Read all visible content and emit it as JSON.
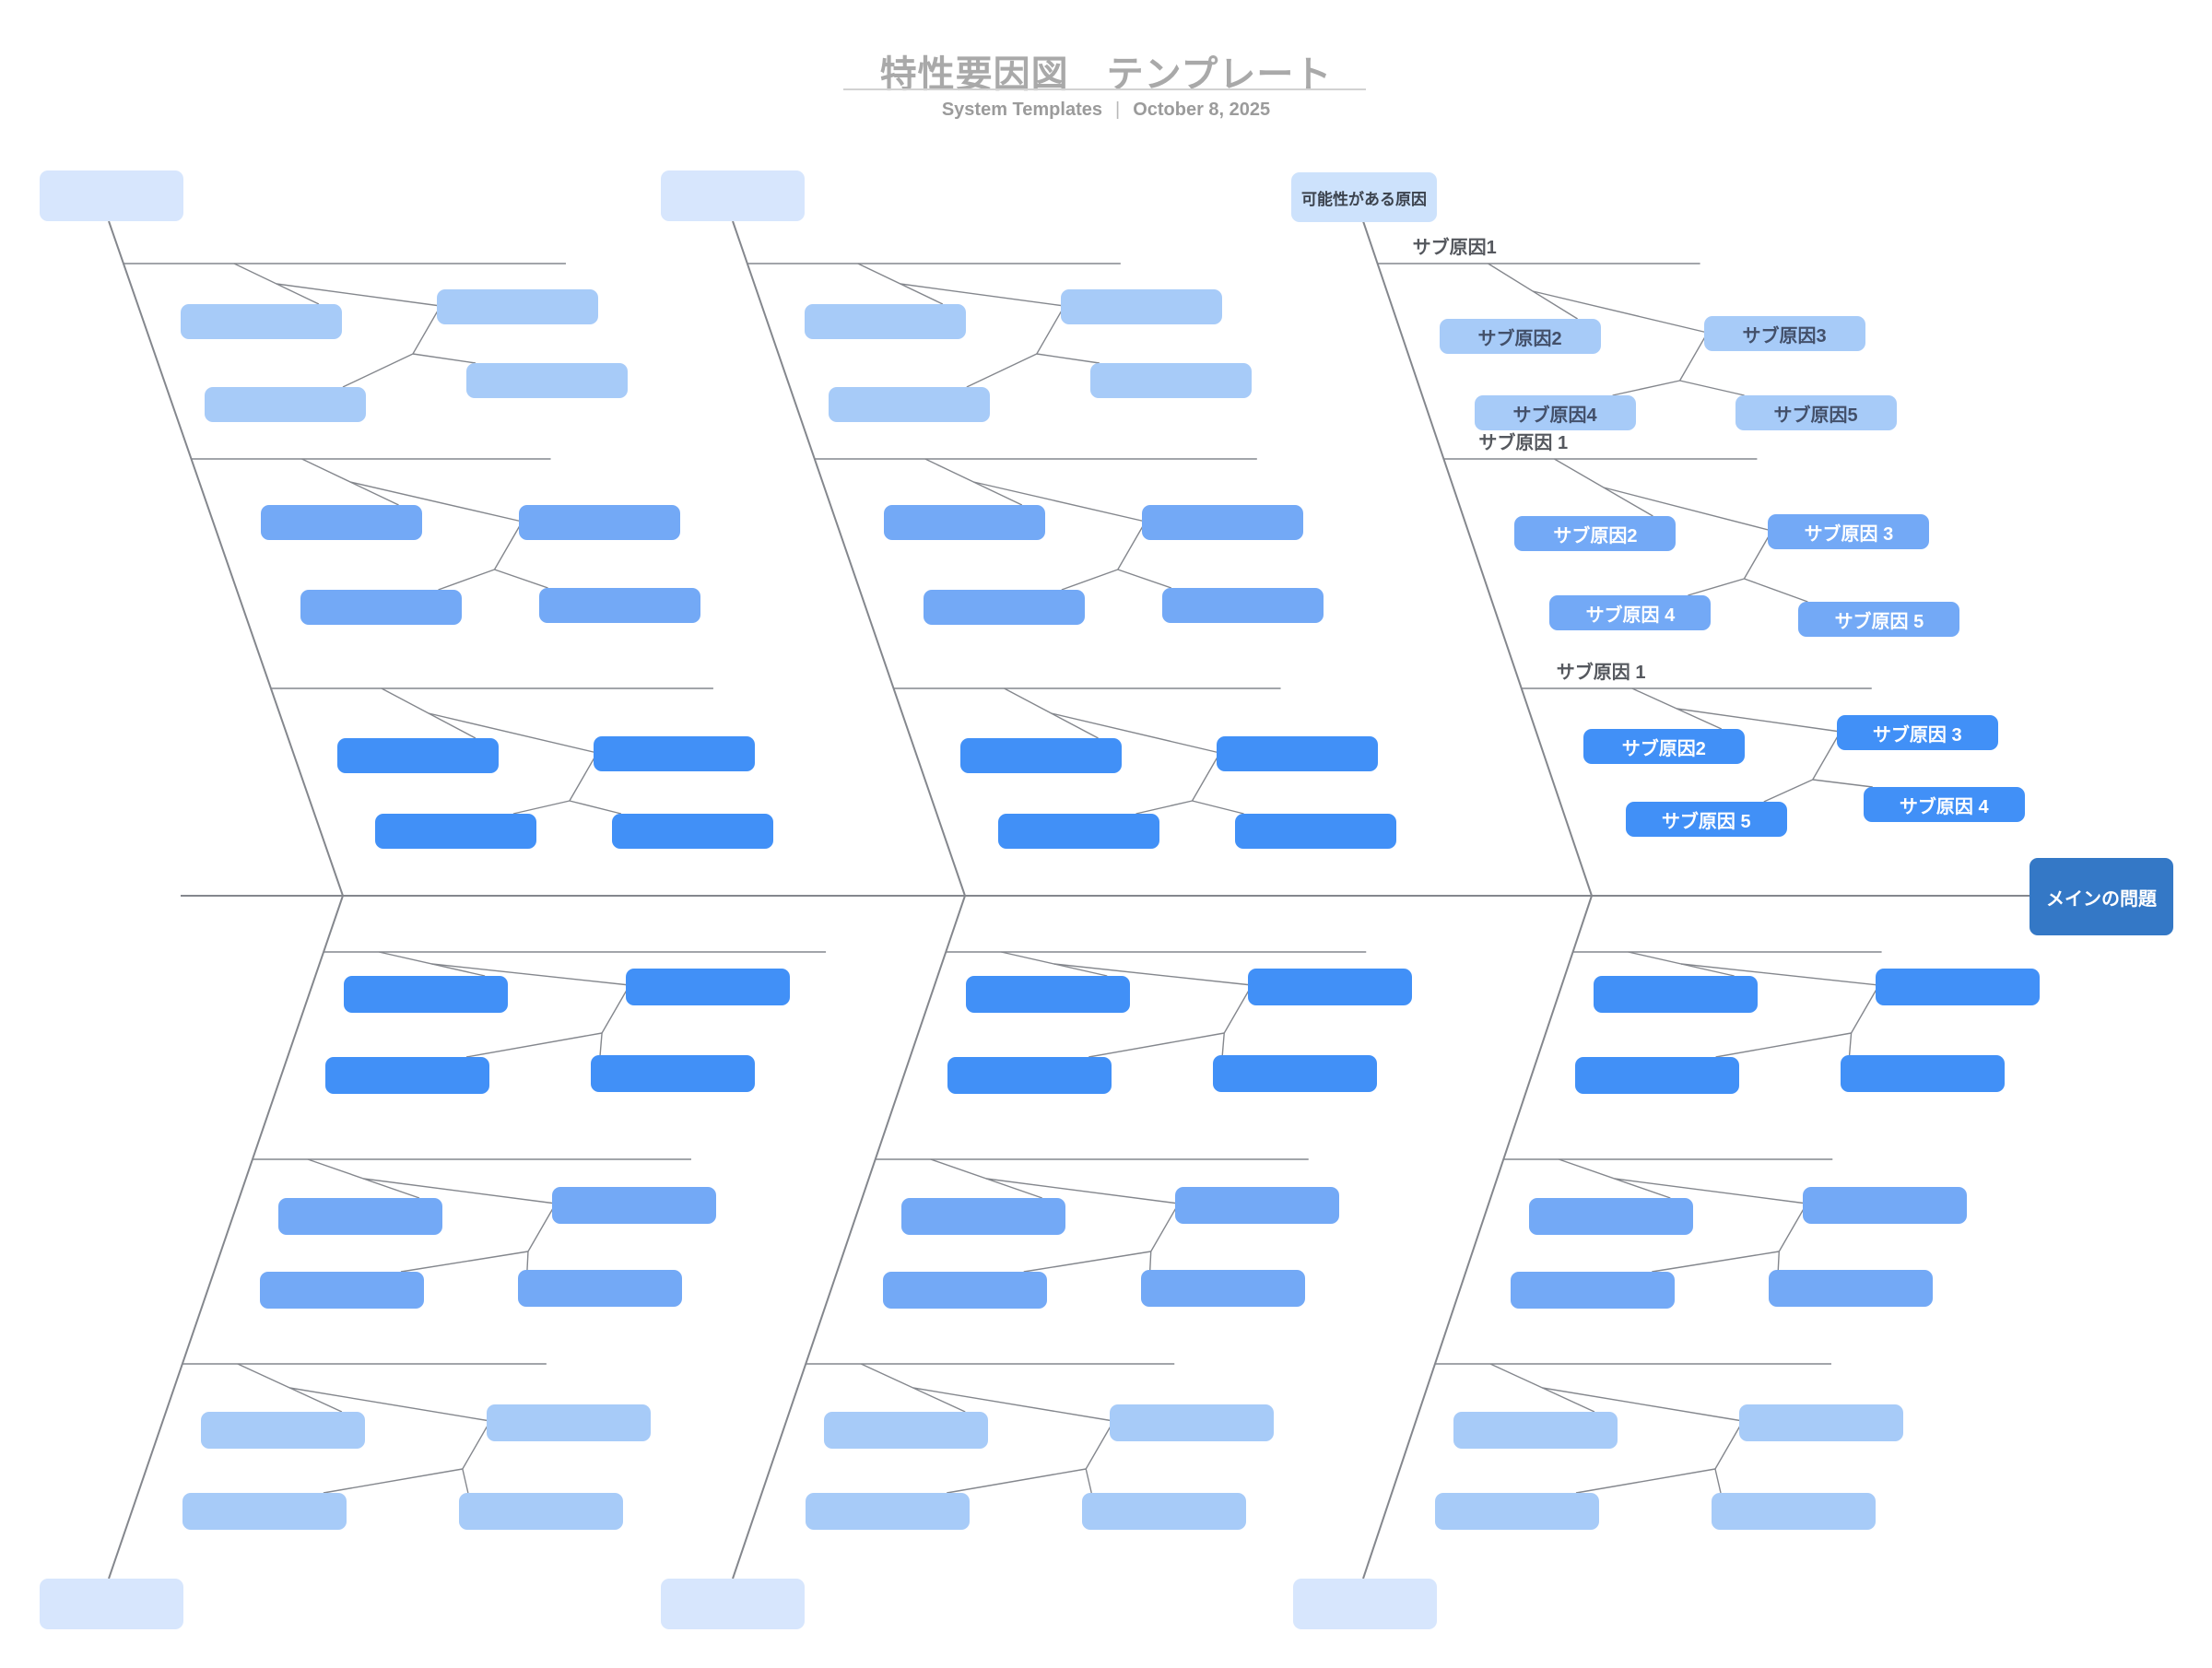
{
  "header": {
    "title": "特性要因図　テンプレート",
    "brand": "System Templates",
    "separator": "|",
    "date": "October 8, 2025"
  },
  "diagram": {
    "main_problem": "メインの問題",
    "possible_cause_label": "可能性がある原因",
    "labeled_branch": {
      "row_labels": [
        "サブ原因1",
        "サブ原因 1",
        "サブ原因 1"
      ],
      "rows": [
        [
          "サブ原因2",
          "サブ原因3",
          "サブ原因4",
          "サブ原因5"
        ],
        [
          "サブ原因2",
          "サブ原因 3",
          "サブ原因 4",
          "サブ原因 5"
        ],
        [
          "サブ原因2",
          "サブ原因 3",
          "サブ原因 5",
          "サブ原因 4"
        ]
      ]
    },
    "colors": {
      "light_box": "#a7cbf8",
      "medium_box": "#73a9f6",
      "dark_box": "#4190f7",
      "main_problem_box": "#3478c6",
      "anchor_box": "#d7e6fd",
      "possible_cause_box": "#cde2fc",
      "line": "#84878d",
      "row_label_text": "#55585e",
      "light_box_text": "#43506a",
      "possible_cause_text": "#3c434e",
      "white_text": "#ffffff",
      "title_text": "#a9a9a9",
      "subtitle_text": "#9b9b9b"
    }
  }
}
